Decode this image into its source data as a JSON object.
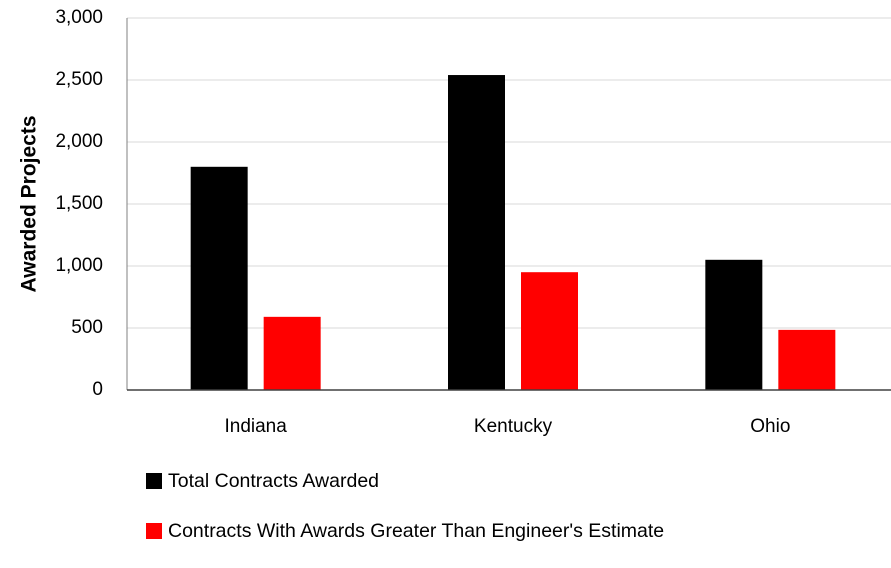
{
  "chart_data": {
    "type": "bar",
    "title": "",
    "xlabel": "",
    "ylabel": "Awarded Projects",
    "ylim": [
      0,
      3000
    ],
    "yticks": [
      0,
      500,
      1000,
      1500,
      2000,
      2500,
      3000
    ],
    "ytick_labels": [
      "0",
      "500",
      "1,000",
      "1,500",
      "2,000",
      "2,500",
      "3,000"
    ],
    "categories": [
      "Indiana",
      "Kentucky",
      "Ohio"
    ],
    "series": [
      {
        "name": "Total Contracts Awarded",
        "color": "#000000",
        "values": [
          1800,
          2540,
          1050
        ]
      },
      {
        "name": "Contracts With Awards Greater Than Engineer's Estimate",
        "color": "#ff0000",
        "values": [
          590,
          950,
          485
        ]
      }
    ],
    "grid": true,
    "legend_position": "bottom-left"
  }
}
